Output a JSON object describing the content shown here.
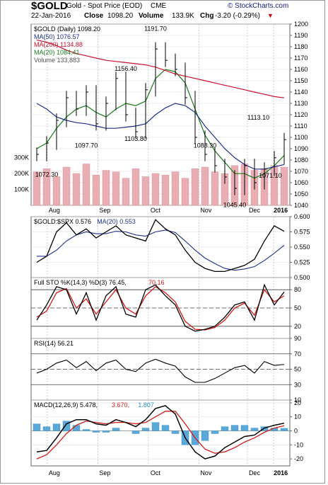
{
  "header": {
    "symbol": "$GOLD",
    "description": "Gold - Spot Price (EOD)",
    "exchange": "CME",
    "date": "22-Jan-2016",
    "close_label": "Close",
    "close_value": "1098.20",
    "volume_label": "Volume",
    "volume_value": "133.9K",
    "chg_label": "Chg",
    "chg_value": "-3.20 (-0.29%)",
    "watermark": "© StockCharts.com",
    "chg_color": "#cc0000"
  },
  "x_axis": {
    "labels": [
      "Aug",
      "Sep",
      "Oct",
      "Nov",
      "Dec",
      "2016"
    ],
    "bold": [
      false,
      false,
      false,
      false,
      false,
      true
    ]
  },
  "chart_data": [
    {
      "type": "line",
      "panel": "price",
      "legend": [
        {
          "text": "$GOLD (Daily) 1098.20",
          "color": "#000000"
        },
        {
          "text": "MA(50) 1076.57",
          "color": "#1f2f8f"
        },
        {
          "text": "MA(200) 1134.88",
          "color": "#c8102e"
        },
        {
          "text": "MA(20) 1084.41",
          "color": "#1a7a1a"
        },
        {
          "text": "Volume 133,883",
          "color": "#555555"
        }
      ],
      "ylim": [
        1040,
        1200
      ],
      "y_ticks": [
        1040,
        1050,
        1060,
        1070,
        1080,
        1090,
        1100,
        1110,
        1120,
        1130,
        1140,
        1150,
        1160,
        1170,
        1180,
        1190,
        1200
      ],
      "volume_ticks": [
        "300K",
        "200K",
        "100K"
      ],
      "annotations": [
        "1072.30",
        "1097.70",
        "1156.40",
        "1103.80",
        "1191.70",
        "1088.30",
        "1045.40",
        "1113.10",
        "1071.10"
      ],
      "x": [
        0,
        5,
        10,
        15,
        20,
        25,
        30,
        35,
        40,
        45,
        50,
        55,
        60,
        65,
        70,
        75,
        80,
        85,
        90,
        95,
        100,
        105,
        110,
        115,
        120,
        125
      ],
      "close": [
        1085,
        1095,
        1115,
        1135,
        1125,
        1140,
        1112,
        1130,
        1152,
        1120,
        1105,
        1142,
        1178,
        1168,
        1160,
        1135,
        1100,
        1085,
        1075,
        1065,
        1055,
        1075,
        1060,
        1072,
        1082,
        1098
      ],
      "series": [
        {
          "name": "MA(20)",
          "values": [
            1090,
            1095,
            1108,
            1118,
            1125,
            1128,
            1122,
            1118,
            1125,
            1130,
            1128,
            1132,
            1152,
            1160,
            1158,
            1148,
            1125,
            1102,
            1088,
            1078,
            1068,
            1068,
            1064,
            1068,
            1075,
            1084
          ]
        },
        {
          "name": "MA(50)",
          "values": [
            1130,
            1125,
            1118,
            1115,
            1113,
            1112,
            1110,
            1108,
            1108,
            1109,
            1110,
            1112,
            1120,
            1126,
            1130,
            1128,
            1122,
            1110,
            1100,
            1090,
            1082,
            1076,
            1072,
            1072,
            1074,
            1076
          ]
        },
        {
          "name": "MA(200)",
          "values": [
            1186,
            1184,
            1181,
            1177,
            1174,
            1172,
            1170,
            1168,
            1167,
            1166,
            1165,
            1164,
            1162,
            1159,
            1156,
            1154,
            1152,
            1150,
            1148,
            1146,
            1144,
            1142,
            1140,
            1138,
            1136,
            1134.88
          ]
        }
      ],
      "volume": [
        210,
        230,
        180,
        240,
        200,
        260,
        190,
        220,
        210,
        170,
        230,
        180,
        200,
        190,
        210,
        170,
        230,
        240,
        210,
        200,
        250,
        260,
        220,
        230,
        250,
        240
      ]
    },
    {
      "type": "line",
      "panel": "ratio",
      "legend": [
        {
          "text": "$GOLD:$SPX 0.576",
          "color": "#000000"
        },
        {
          "text": "MA(20) 0.553",
          "color": "#1f2f8f"
        }
      ],
      "ylim": [
        0.5,
        0.6
      ],
      "y_ticks": [
        0.5,
        0.525,
        0.55,
        0.575,
        0.6
      ],
      "y_tick_labels": [
        "0.500",
        "0.525",
        "0.550",
        "0.575",
        "0.600"
      ],
      "x": [
        0,
        5,
        10,
        15,
        20,
        25,
        30,
        35,
        40,
        45,
        50,
        55,
        60,
        65,
        70,
        75,
        80,
        85,
        90,
        95,
        100,
        105,
        110,
        115,
        120,
        125
      ],
      "series": [
        {
          "name": "$GOLD:$SPX",
          "values": [
            0.525,
            0.535,
            0.575,
            0.59,
            0.57,
            0.58,
            0.565,
            0.575,
            0.585,
            0.57,
            0.565,
            0.56,
            0.595,
            0.58,
            0.57,
            0.545,
            0.525,
            0.515,
            0.51,
            0.51,
            0.515,
            0.52,
            0.53,
            0.56,
            0.585,
            0.576
          ]
        },
        {
          "name": "MA(20)",
          "values": [
            0.535,
            0.535,
            0.545,
            0.56,
            0.57,
            0.575,
            0.572,
            0.572,
            0.576,
            0.575,
            0.57,
            0.568,
            0.575,
            0.578,
            0.574,
            0.56,
            0.545,
            0.532,
            0.523,
            0.515,
            0.512,
            0.514,
            0.518,
            0.528,
            0.54,
            0.553
          ]
        }
      ]
    },
    {
      "type": "line",
      "panel": "stochastic",
      "legend": [
        {
          "text": "Full STO %K(14,3) %D(3) 76.45,",
          "color": "#000000"
        },
        {
          "text": "70.16",
          "color": "#d11a1a"
        }
      ],
      "ylim": [
        0,
        100
      ],
      "y_ticks": [
        20,
        50,
        80
      ],
      "x": [
        0,
        5,
        10,
        15,
        20,
        25,
        30,
        35,
        40,
        45,
        50,
        55,
        60,
        65,
        70,
        75,
        80,
        85,
        90,
        95,
        100,
        105,
        110,
        115,
        120,
        125
      ],
      "series": [
        {
          "name": "%K",
          "values": [
            30,
            55,
            85,
            80,
            40,
            75,
            30,
            70,
            85,
            40,
            35,
            80,
            88,
            70,
            55,
            20,
            12,
            15,
            20,
            35,
            55,
            60,
            30,
            88,
            55,
            76.45
          ]
        },
        {
          "name": "%D",
          "values": [
            35,
            45,
            75,
            82,
            50,
            65,
            40,
            60,
            80,
            50,
            40,
            70,
            85,
            75,
            60,
            28,
            15,
            14,
            18,
            30,
            50,
            58,
            38,
            80,
            60,
            70.16
          ]
        }
      ]
    },
    {
      "type": "line",
      "panel": "rsi",
      "legend": [
        {
          "text": "RSI(14) 56.21",
          "color": "#000000"
        }
      ],
      "ylim": [
        10,
        90
      ],
      "y_ticks": [
        10,
        30,
        50,
        70,
        90
      ],
      "x": [
        0,
        5,
        10,
        15,
        20,
        25,
        30,
        35,
        40,
        45,
        50,
        55,
        60,
        65,
        70,
        75,
        80,
        85,
        90,
        95,
        100,
        105,
        110,
        115,
        120,
        125
      ],
      "series": [
        {
          "name": "RSI(14)",
          "values": [
            45,
            50,
            58,
            62,
            52,
            60,
            48,
            58,
            62,
            50,
            47,
            58,
            63,
            58,
            54,
            40,
            33,
            33,
            38,
            45,
            52,
            55,
            45,
            60,
            55,
            56.21
          ]
        }
      ]
    },
    {
      "type": "line",
      "panel": "macd",
      "legend": [
        {
          "text": "MACD(12,26,9) 5.478,",
          "color": "#000000"
        },
        {
          "text": "3.670,",
          "color": "#d11a1a"
        },
        {
          "text": "1.807",
          "color": "#2a8fd0"
        }
      ],
      "ylim": [
        -25,
        22
      ],
      "y_ticks": [
        -20,
        -10,
        0,
        10,
        20
      ],
      "x": [
        0,
        5,
        10,
        15,
        20,
        25,
        30,
        35,
        40,
        45,
        50,
        55,
        60,
        65,
        70,
        75,
        80,
        85,
        90,
        95,
        100,
        105,
        110,
        115,
        120,
        125
      ],
      "series": [
        {
          "name": "MACD",
          "values": [
            -15,
            -14,
            -5,
            5,
            8,
            8,
            5,
            4,
            8,
            6,
            3,
            8,
            16,
            18,
            12,
            -5,
            -15,
            -20,
            -18,
            -12,
            -8,
            -4,
            -3,
            2,
            4,
            5.478
          ]
        },
        {
          "name": "Signal",
          "values": [
            -20,
            -17,
            -10,
            -2,
            4,
            7,
            6,
            5,
            6,
            6,
            5,
            6,
            10,
            14,
            14,
            5,
            -5,
            -13,
            -16,
            -15,
            -12,
            -8,
            -5,
            -1,
            2,
            3.67
          ]
        },
        {
          "name": "Histogram",
          "values": [
            5,
            3,
            5,
            7,
            4,
            1,
            -1,
            -1,
            2,
            0,
            -2,
            2,
            6,
            4,
            -2,
            -10,
            -10,
            -7,
            -2,
            3,
            4,
            4,
            2,
            3,
            2,
            1.807
          ]
        }
      ]
    }
  ]
}
